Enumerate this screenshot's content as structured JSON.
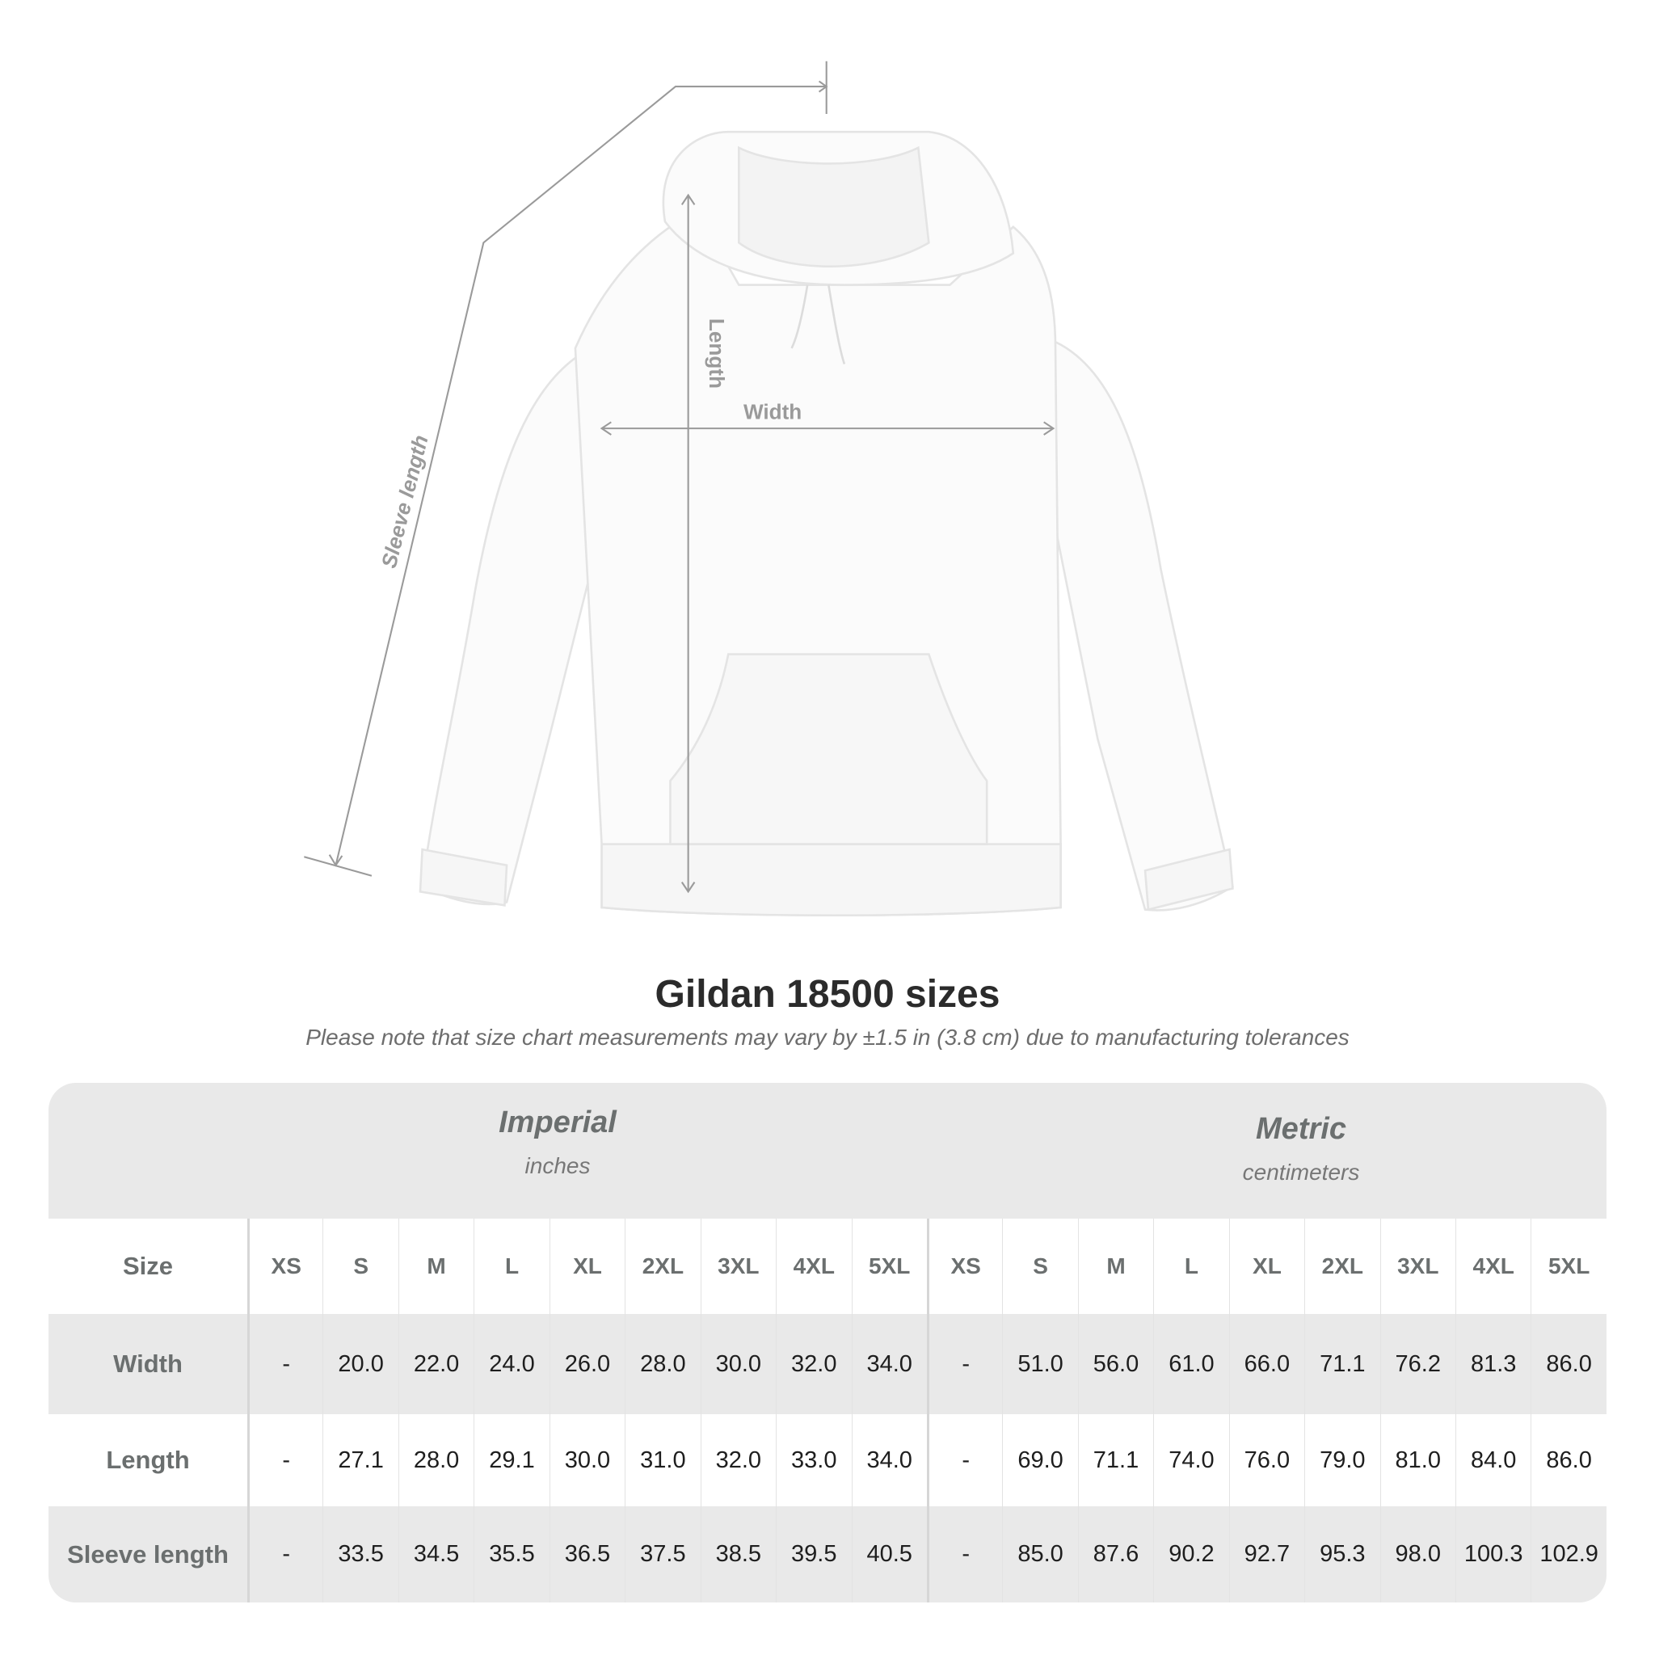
{
  "diagram": {
    "labels": {
      "length": "Length",
      "width": "Width",
      "sleeve": "Sleeve length"
    }
  },
  "title": "Gildan 18500 sizes",
  "subtitle": "Please note that size chart measurements may vary by ±1.5 in (3.8 cm) due to manufacturing tolerances",
  "table": {
    "imperial": {
      "name": "Imperial",
      "unit": "inches"
    },
    "metric": {
      "name": "Metric",
      "unit": "centimeters"
    },
    "size_label": "Size",
    "sizes": [
      "XS",
      "S",
      "M",
      "L",
      "XL",
      "2XL",
      "3XL",
      "4XL",
      "5XL"
    ],
    "rows": [
      {
        "label": "Width",
        "imperial": [
          "-",
          "20.0",
          "22.0",
          "24.0",
          "26.0",
          "28.0",
          "30.0",
          "32.0",
          "34.0"
        ],
        "metric": [
          "-",
          "51.0",
          "56.0",
          "61.0",
          "66.0",
          "71.1",
          "76.2",
          "81.3",
          "86.0"
        ]
      },
      {
        "label": "Length",
        "imperial": [
          "-",
          "27.1",
          "28.0",
          "29.1",
          "30.0",
          "31.0",
          "32.0",
          "33.0",
          "34.0"
        ],
        "metric": [
          "-",
          "69.0",
          "71.1",
          "74.0",
          "76.0",
          "79.0",
          "81.0",
          "84.0",
          "86.0"
        ]
      },
      {
        "label": "Sleeve length",
        "imperial": [
          "-",
          "33.5",
          "34.5",
          "35.5",
          "36.5",
          "37.5",
          "38.5",
          "39.5",
          "40.5"
        ],
        "metric": [
          "-",
          "85.0",
          "87.6",
          "90.2",
          "92.7",
          "95.3",
          "98.0",
          "100.3",
          "102.9"
        ]
      }
    ]
  }
}
